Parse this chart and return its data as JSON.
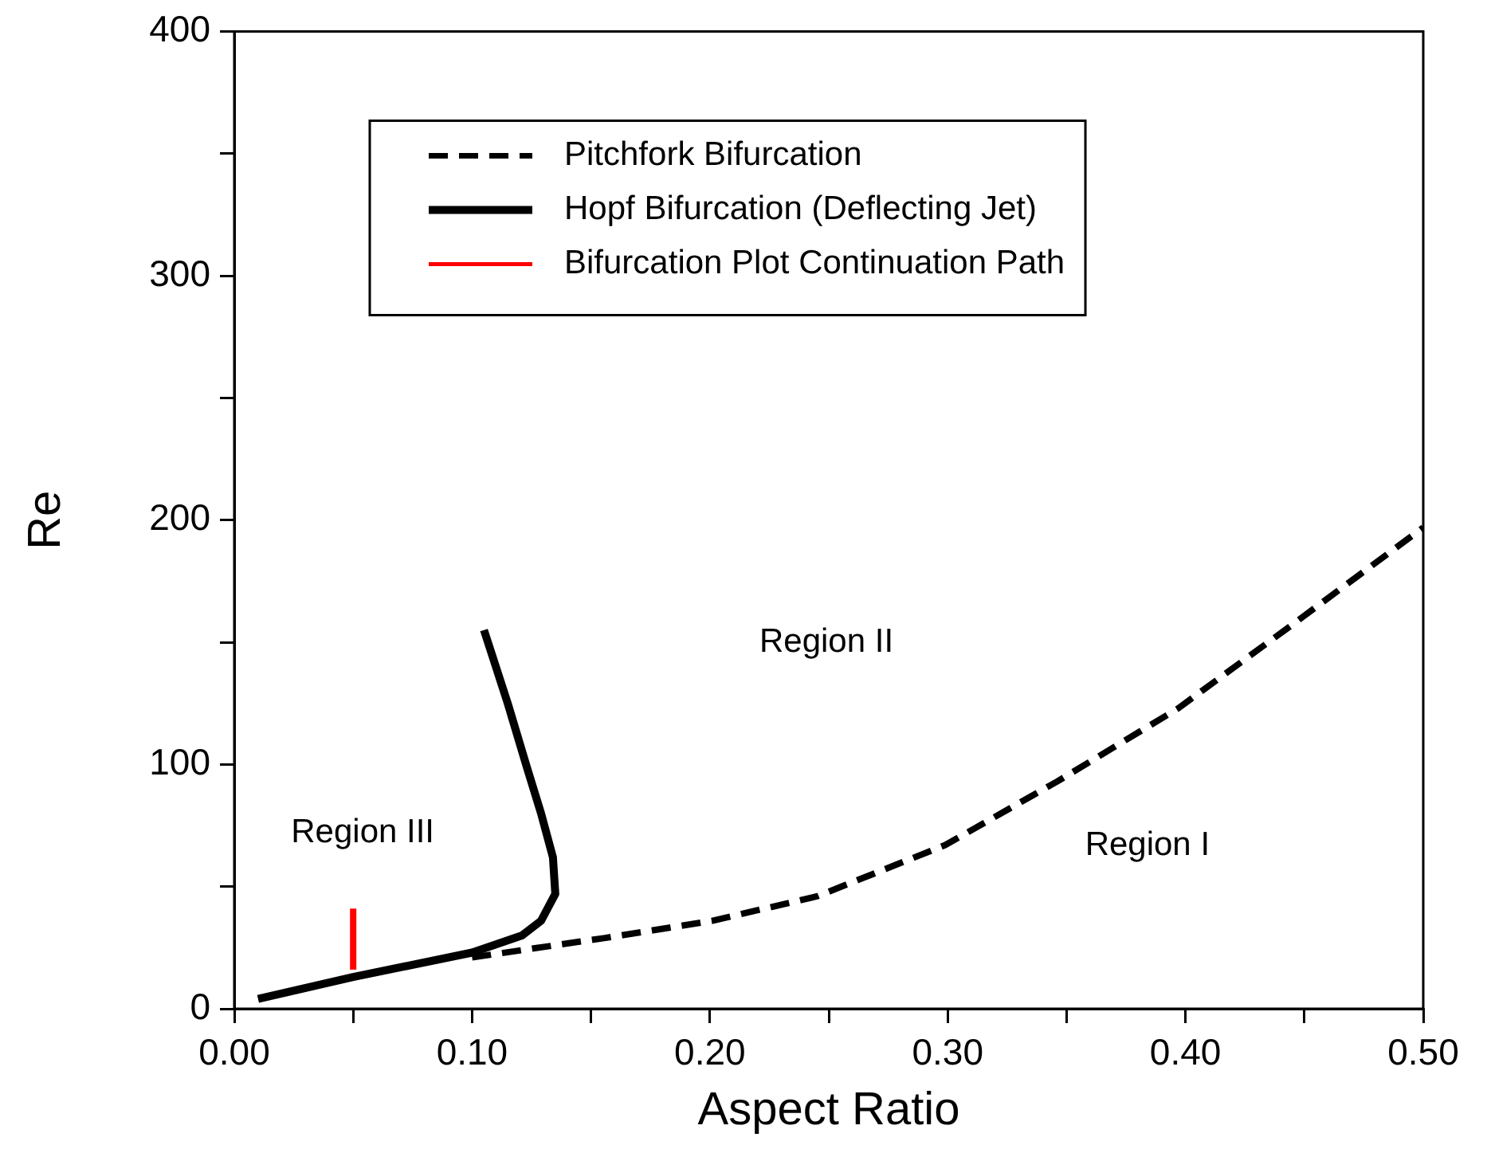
{
  "chart_data": {
    "type": "line",
    "xlabel": "Aspect Ratio",
    "ylabel": "Re",
    "xlim": [
      0,
      0.5
    ],
    "ylim": [
      0,
      400
    ],
    "xticks": [
      {
        "value": 0,
        "label": "0.00"
      },
      {
        "value": 0.05,
        "label": null
      },
      {
        "value": 0.1,
        "label": "0.10"
      },
      {
        "value": 0.15,
        "label": null
      },
      {
        "value": 0.2,
        "label": "0.20"
      },
      {
        "value": 0.25,
        "label": null
      },
      {
        "value": 0.3,
        "label": "0.30"
      },
      {
        "value": 0.35,
        "label": null
      },
      {
        "value": 0.4,
        "label": "0.40"
      },
      {
        "value": 0.45,
        "label": null
      },
      {
        "value": 0.5,
        "label": "0.50"
      }
    ],
    "yticks": [
      0,
      {
        "value": 50,
        "label": null
      },
      100,
      {
        "value": 150,
        "label": null
      },
      200,
      {
        "value": 250,
        "label": null
      },
      300,
      {
        "value": 350,
        "label": null
      },
      400
    ],
    "grid": false,
    "legend": "top left",
    "marker": "none",
    "series": [
      {
        "name": "Pitchfork Bifurcation",
        "color": "#000000",
        "line_style": "dashed",
        "x": [
          0.1,
          0.156,
          0.201,
          0.245,
          0.299,
          0.346,
          0.397,
          0.446,
          0.5
        ],
        "values": [
          21,
          29,
          36,
          46,
          67,
          93,
          123,
          158,
          197
        ]
      },
      {
        "name": "Hopf Bifurcation (Deflecting Jet)",
        "color": "#000000",
        "line_style": "solid",
        "x": [
          0.01,
          0.05,
          0.1,
          0.121,
          0.129,
          0.135,
          0.134,
          0.129,
          0.123,
          0.115,
          0.109,
          0.105
        ],
        "values": [
          4,
          13,
          23,
          30,
          36,
          47,
          62,
          80,
          99,
          125,
          143,
          155
        ]
      },
      {
        "name": "Bifurcation Plot Continuation Path",
        "color": "#ff0000",
        "line_style": "solid",
        "x": [
          0.05,
          0.05
        ],
        "values": [
          16,
          41
        ]
      }
    ],
    "annotations": [
      "Region I",
      "Region II",
      "Region III"
    ]
  }
}
